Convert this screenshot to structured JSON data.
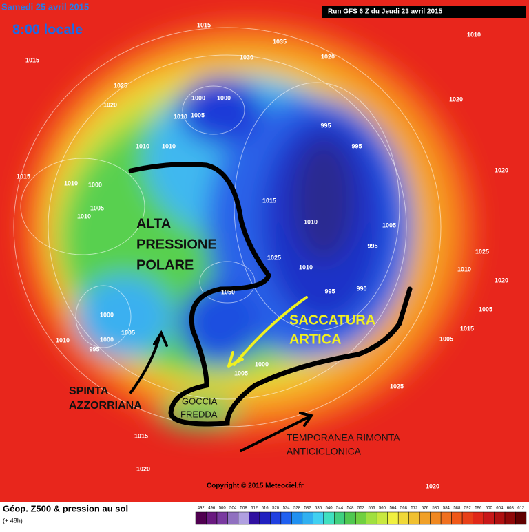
{
  "header": {
    "date": "Samedi 25 avril 2015",
    "time": "8:00 locale",
    "run": "Run GFS 6 Z du Jeudi 23 avril 2015"
  },
  "annotations": {
    "alta": [
      "ALTA",
      "PRESSIONE",
      "POLARE"
    ],
    "saccatura": [
      "SACCATURA",
      "ARTICA"
    ],
    "spinta": [
      "SPINTA",
      "AZZORRIANA"
    ],
    "goccia": [
      "GOCCIA",
      "FREDDA"
    ],
    "rimonta": [
      "TEMPORANEA RIMONTA",
      "ANTICICLONICA"
    ]
  },
  "isobar_labels": [
    1015,
    1035,
    1030,
    1020,
    1010,
    1015,
    1025,
    1020,
    1000,
    1000,
    1010,
    1005,
    1020,
    995,
    995,
    1010,
    1010,
    1020,
    1015,
    1010,
    1000,
    1005,
    1010,
    1015,
    1010,
    1005,
    995,
    1025,
    1025,
    1010,
    1010,
    1020,
    995,
    990,
    1050,
    1000,
    1005,
    1010,
    1000,
    995,
    1005,
    1015,
    1005,
    1000,
    1005,
    1025,
    1015,
    1020,
    1020
  ],
  "footer": {
    "copyright": "Copyright © 2015 Meteociel.fr",
    "title": "Géop. Z500 & pression au sol",
    "lead": "(+ 48h)"
  },
  "scale_labels": [
    492,
    496,
    500,
    504,
    508,
    512,
    516,
    520,
    524,
    528,
    532,
    536,
    540,
    544,
    548,
    552,
    556,
    560,
    564,
    568,
    572,
    576,
    580,
    584,
    588,
    592,
    596,
    600,
    604,
    608,
    612
  ]
}
